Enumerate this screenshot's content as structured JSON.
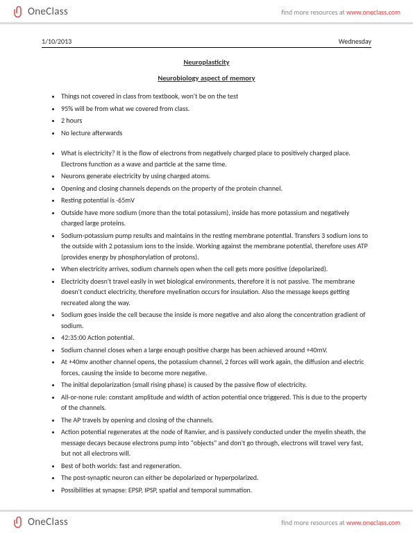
{
  "brand": {
    "logo_text": "OneClass",
    "tagline_prefix": "find more resources at ",
    "tagline_url": "www.oneclass.com",
    "logo_stroke": "#d44",
    "logo_fill": "#ffffff"
  },
  "meta": {
    "date": "1/10/2013",
    "day": "Wednesday"
  },
  "headings": {
    "title": "Neuroplasticity",
    "subtitle": "Neurobiology aspect of memory"
  },
  "list1": [
    "Things not covered in class from textbook, won't be on the test",
    "95% will be from what we covered from class.",
    "2 hours",
    "No lecture afterwards"
  ],
  "list2": [
    "What is electricity? It is the flow of electrons from negatively charged place to positively charged place. Electrons function as a wave and particle at the same time.",
    "Neurons generate electricity by using charged atoms.",
    "Opening and closing channels depends on the property of the protein channel.",
    "Resting potential is -65mV",
    "Outside have more sodium (more than the total potassium), inside has more potassium and negatively charged large proteins.",
    "Sodium-potassium pump results and maintains in the resting membrane potential. Transfers 3 sodium ions to the outside with 2 potassium ions to the inside. Working against the membrane potential, therefore uses ATP (provides energy by phosphorylation of protons).",
    "When electricity arrives, sodium channels open when the cell gets more positive (depolarized).",
    "Electricity doesn't travel easily in wet biological environments, therefore it is not passive. The membrane doesn't conduct electricity, therefore myelination occurs for insulation. Also the message keeps getting recreated along the way.",
    "Sodium goes inside the cell because the inside is more negative and also along the concentration gradient of sodium.",
    "42:35:00 Action potential.",
    "Sodium channel closes when a large enough positive charge has been achieved around +40mV.",
    "At +40mv another channel opens, the potassium channel, 2 forces will work again, the diffusion and electric forces, causing the inside to become more negative.",
    "The initial depolarization (small rising phase) is caused by the passive flow of electricity.",
    "All-or-none rule: constant amplitude and width of action potential once triggered. This is due to the property of the channels.",
    "The AP travels by opening and closing of the channels.",
    "Action potential regenerates at the node of Ranvier, and is passively conducted under the myelin sheath, the message decays because electrons pump into \"objects\" and don't go through, electrons will travel very fast, but not all electrons will.",
    "Best of both worlds: fast and regeneration.",
    "The post-synaptic neuron can either be depolarized or hyperpolarized.",
    "Possibilities at synapse: EPSP, IPSP, spatial and temporal summation."
  ]
}
